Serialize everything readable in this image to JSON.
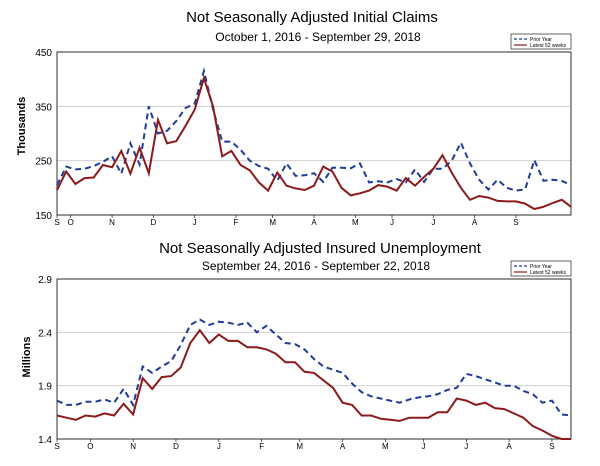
{
  "chart_data": [
    {
      "type": "line",
      "title": "Not Seasonally Adjusted Initial Claims",
      "subtitle": "October 1, 2016 - September 29, 2018",
      "xlabel": "",
      "ylabel": "Thousands",
      "ylim": [
        150,
        450
      ],
      "yticks": [
        "450",
        "350",
        "250",
        "150"
      ],
      "ytick_values": [
        450,
        350,
        250,
        150
      ],
      "month_labels": [
        "S",
        "O",
        "N",
        "D",
        "J",
        "F",
        "M",
        "A",
        "M",
        "J",
        "J",
        "A",
        "S"
      ],
      "month_positions": [
        0,
        1.5,
        6,
        10.5,
        15,
        19.5,
        23.5,
        28,
        32.5,
        36.5,
        41,
        45.5,
        50
      ],
      "colors": {
        "prior": "#1f3c99",
        "latest": "#8c1a1a"
      },
      "series": [
        {
          "name": "Prior Year",
          "values": [
            205,
            239,
            234,
            235,
            240,
            248,
            258,
            226,
            282,
            243,
            350,
            300,
            305,
            323,
            347,
            355,
            415,
            345,
            285,
            285,
            270,
            250,
            240,
            235,
            213,
            245,
            222,
            223,
            227,
            211,
            237,
            237,
            236,
            245,
            210,
            212,
            210,
            216,
            210,
            234,
            211,
            235,
            235,
            250,
            283,
            245,
            215,
            197,
            215,
            200,
            195,
            197,
            251,
            213,
            215,
            213,
            205
          ]
        },
        {
          "name": "Latest 52 weeks",
          "values": [
            196,
            230,
            207,
            218,
            219,
            242,
            238,
            268,
            226,
            274,
            227,
            325,
            282,
            286,
            314,
            344,
            402,
            350,
            258,
            268,
            242,
            232,
            210,
            195,
            228,
            204,
            199,
            196,
            204,
            239,
            230,
            200,
            186,
            190,
            195,
            205,
            202,
            195,
            218,
            204,
            220,
            235,
            260,
            228,
            200,
            178,
            185,
            182,
            176,
            175,
            175,
            171,
            161,
            165,
            172,
            178,
            165
          ]
        }
      ]
    },
    {
      "type": "line",
      "title": "Not Seasonally Adjusted Insured Unemployment",
      "subtitle": "September 24, 2016 - September 22, 2018",
      "xlabel": "",
      "ylabel": "Millions",
      "ylim": [
        1.4,
        2.9
      ],
      "yticks": [
        "2.9",
        "2.4",
        "1.9",
        "1.4"
      ],
      "ytick_values": [
        2.9,
        2.4,
        1.9,
        1.4
      ],
      "month_labels": [
        "S",
        "O",
        "N",
        "D",
        "J",
        "F",
        "M",
        "A",
        "M",
        "J",
        "J",
        "A",
        "S"
      ],
      "month_positions": [
        0,
        3.5,
        8,
        12.5,
        17,
        21.5,
        25.5,
        30,
        34.5,
        38.5,
        43,
        47.5,
        52
      ],
      "colors": {
        "prior": "#1f3c99",
        "latest": "#8c1a1a"
      },
      "series": [
        {
          "name": "Prior Year",
          "values": [
            1.76,
            1.72,
            1.72,
            1.75,
            1.75,
            1.77,
            1.74,
            1.87,
            1.72,
            2.08,
            2.02,
            2.08,
            2.13,
            2.28,
            2.47,
            2.52,
            2.47,
            2.5,
            2.49,
            2.47,
            2.49,
            2.4,
            2.46,
            2.38,
            2.3,
            2.29,
            2.24,
            2.15,
            2.08,
            2.05,
            2.02,
            1.92,
            1.84,
            1.8,
            1.78,
            1.76,
            1.74,
            1.77,
            1.79,
            1.8,
            1.82,
            1.86,
            1.88,
            2.01,
            1.99,
            1.96,
            1.93,
            1.9,
            1.9,
            1.85,
            1.82,
            1.74,
            1.76,
            1.63,
            1.62
          ]
        },
        {
          "name": "Latest 52 weeks",
          "values": [
            1.62,
            1.6,
            1.58,
            1.62,
            1.61,
            1.64,
            1.62,
            1.73,
            1.63,
            1.97,
            1.87,
            1.98,
            1.99,
            2.07,
            2.3,
            2.42,
            2.3,
            2.38,
            2.32,
            2.32,
            2.26,
            2.26,
            2.24,
            2.2,
            2.12,
            2.12,
            2.03,
            2.02,
            1.95,
            1.88,
            1.74,
            1.72,
            1.62,
            1.62,
            1.59,
            1.58,
            1.57,
            1.6,
            1.6,
            1.6,
            1.65,
            1.65,
            1.78,
            1.76,
            1.72,
            1.74,
            1.69,
            1.68,
            1.64,
            1.6,
            1.52,
            1.48,
            1.43,
            1.4,
            1.4
          ]
        }
      ]
    }
  ]
}
